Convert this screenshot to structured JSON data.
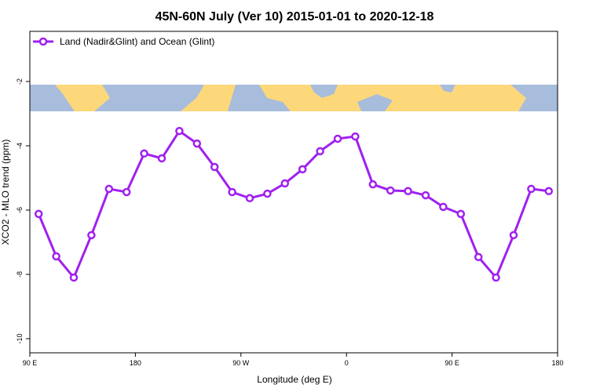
{
  "chart_data": {
    "type": "line",
    "title": "45N-60N July (Ver 10)   2015-01-01 to 2020-12-18",
    "x_label": "Longitude (deg E)",
    "y_label": "XCO2 - MLO trend (ppm)",
    "xlim": [
      90,
      540
    ],
    "xticks": [
      {
        "value": 90,
        "label": "90 E"
      },
      180,
      {
        "value": 270,
        "label": "90 W"
      },
      {
        "value": 360,
        "label": "0"
      },
      {
        "value": 450,
        "label": "90 E"
      },
      {
        "value": 540,
        "label": "180"
      }
    ],
    "ylim": [
      -10.44,
      -0.44
    ],
    "yticks": [
      -10,
      -8,
      -6,
      -4,
      -2
    ],
    "legend": "top-left",
    "series": [
      {
        "name": "Land (Nadir&Glint) and Ocean (Glint)",
        "color": "#a020f0",
        "x": [
          97.5,
          112.5,
          127.5,
          142.5,
          157.5,
          172.5,
          187.5,
          202.5,
          217.5,
          232.5,
          247.5,
          262.5,
          277.5,
          292.5,
          307.5,
          322.5,
          337.5,
          352.5,
          367.5,
          382.5,
          397.5,
          412.5,
          427.5,
          442.5,
          457.5,
          472.5,
          487.5,
          502.5,
          517.5,
          532.5
        ],
        "values": [
          -6.12,
          -7.44,
          -8.1,
          -6.78,
          -5.34,
          -5.44,
          -4.24,
          -4.39,
          -3.54,
          -3.93,
          -4.66,
          -5.44,
          -5.63,
          -5.49,
          -5.17,
          -4.73,
          -4.17,
          -3.78,
          -3.71,
          -5.2,
          -5.39,
          -5.41,
          -5.54,
          -5.9,
          -6.12,
          -7.46,
          -8.1,
          -6.78,
          -5.34,
          -5.41
        ]
      }
    ]
  }
}
